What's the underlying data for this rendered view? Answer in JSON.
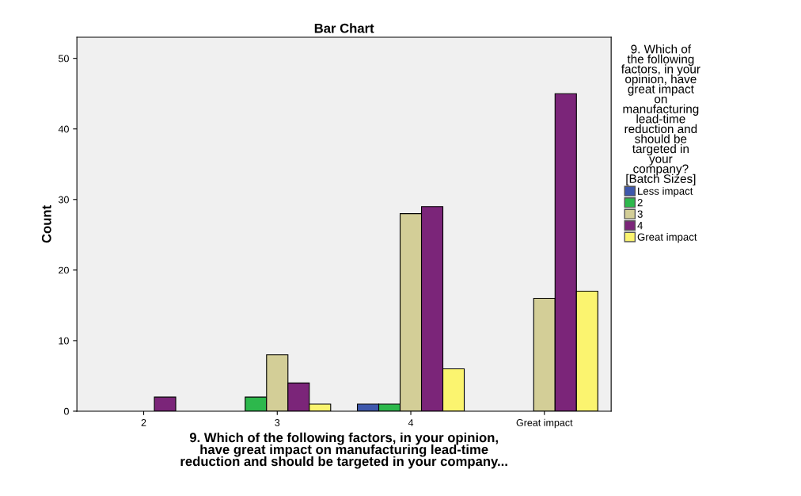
{
  "chart_data": {
    "type": "bar",
    "title": "Bar Chart",
    "ylabel": "Count",
    "xlabel": "9. Which of the following factors, in your opinion,\nhave great impact on manufacturing lead-time\nreduction and should be targeted in your company...",
    "legend_title": "9. Which of\nthe following\nfactors, in your\nopinion, have\ngreat impact\non\nmanufacturing\nlead-time\nreduction and\nshould be\ntargeted in\nyour\ncompany?\n[Batch Sizes]",
    "categories": [
      "2",
      "3",
      "4",
      "Great impact"
    ],
    "series": [
      {
        "name": "Less impact",
        "color": "#3e58ac",
        "values": [
          null,
          null,
          1,
          null
        ]
      },
      {
        "name": "2",
        "color": "#2db84c",
        "values": [
          null,
          2,
          1,
          null
        ]
      },
      {
        "name": "3",
        "color": "#d3ce97",
        "values": [
          null,
          8,
          28,
          16
        ]
      },
      {
        "name": "4",
        "color": "#7b2579",
        "values": [
          2,
          4,
          29,
          45
        ]
      },
      {
        "name": "Great impact",
        "color": "#fbf46f",
        "values": [
          null,
          1,
          6,
          17
        ]
      }
    ],
    "ylim": [
      0,
      53
    ],
    "yticks": [
      0,
      10,
      20,
      30,
      40,
      50
    ],
    "grid": false,
    "legend": "right"
  }
}
